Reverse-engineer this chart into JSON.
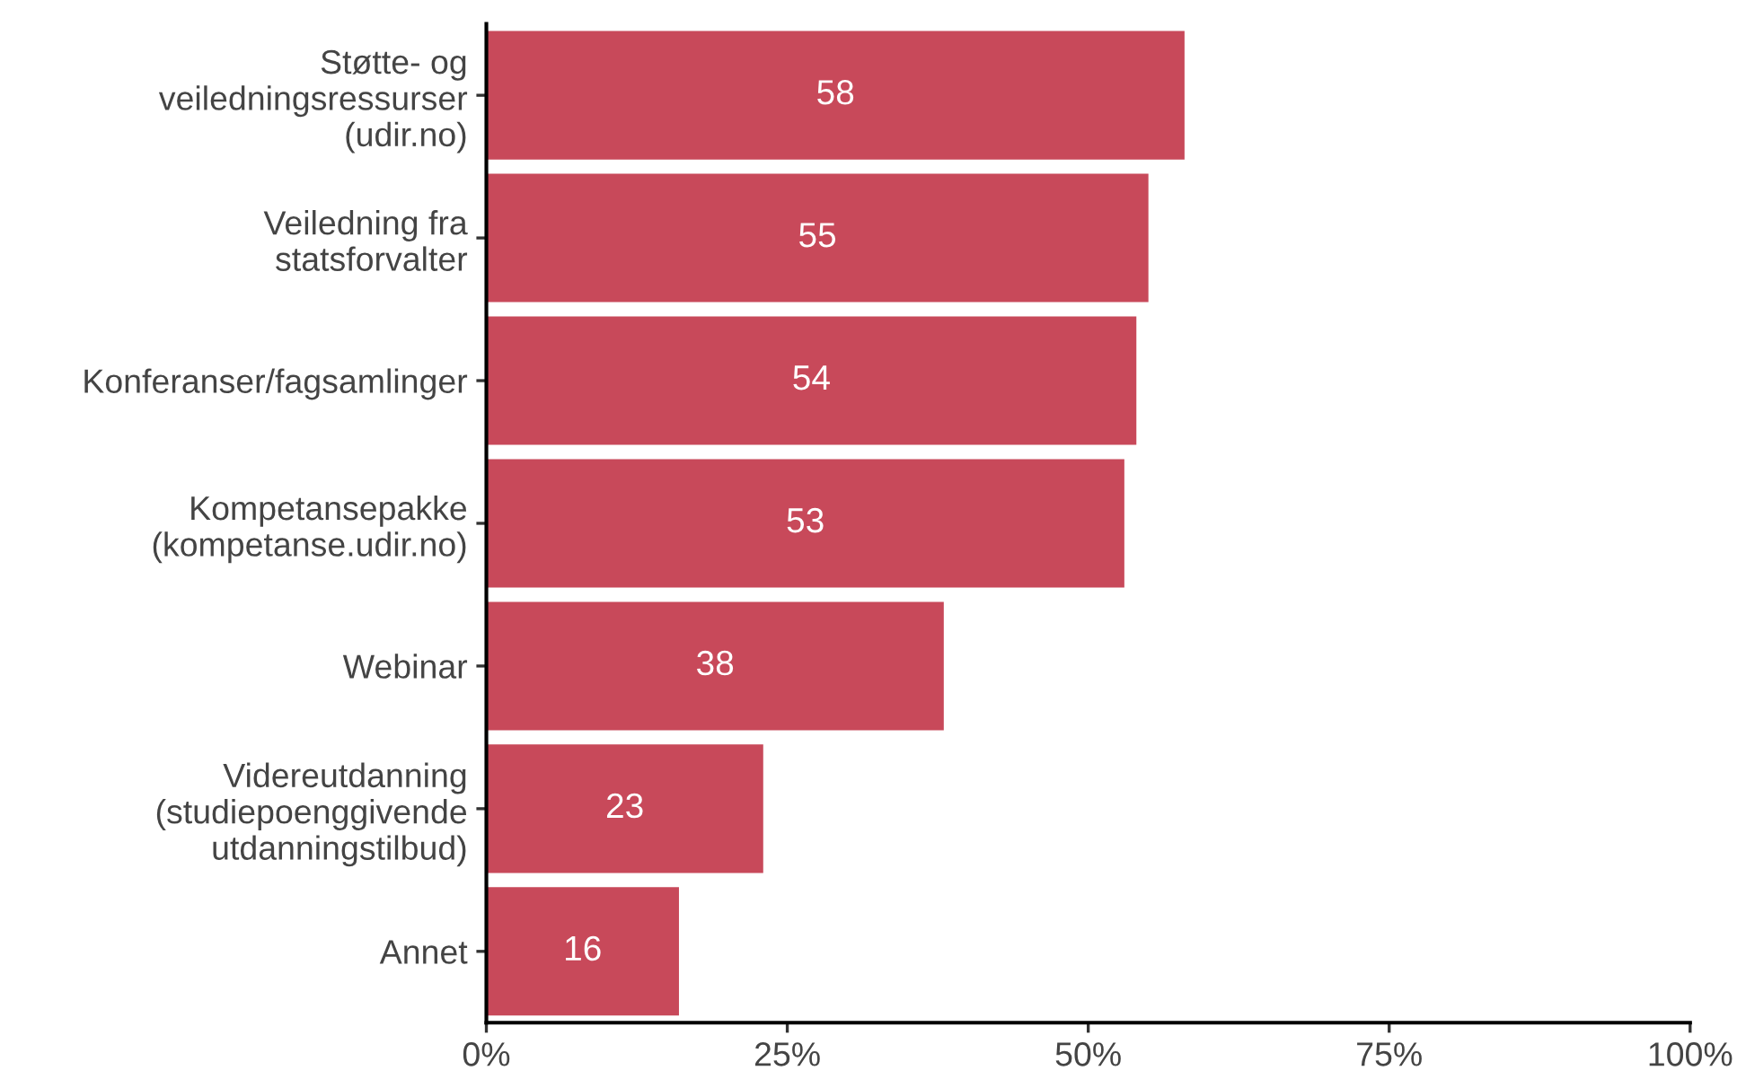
{
  "chart_data": {
    "type": "bar",
    "orientation": "horizontal",
    "categories": [
      "Støtte- og\nveiledningsressurser\n(udir.no)",
      "Veiledning fra\nstatsforvalter",
      "Konferanser/fagsamlinger",
      "Kompetansepakke\n(kompetanse.udir.no)",
      "Webinar",
      "Videreutdanning\n(studiepoenggivende\nutdanningstilbud)",
      "Annet"
    ],
    "values": [
      58,
      55,
      54,
      53,
      38,
      23,
      16
    ],
    "color": "#c8495a",
    "data_labels": true,
    "xlim": [
      0,
      100
    ],
    "xticks": [
      {
        "value": 0,
        "label": "0%"
      },
      {
        "value": 25,
        "label": "25%"
      },
      {
        "value": 50,
        "label": "50%"
      },
      {
        "value": 75,
        "label": "75%"
      },
      {
        "value": 100,
        "label": "100%"
      }
    ],
    "grid": false,
    "legend": false
  }
}
